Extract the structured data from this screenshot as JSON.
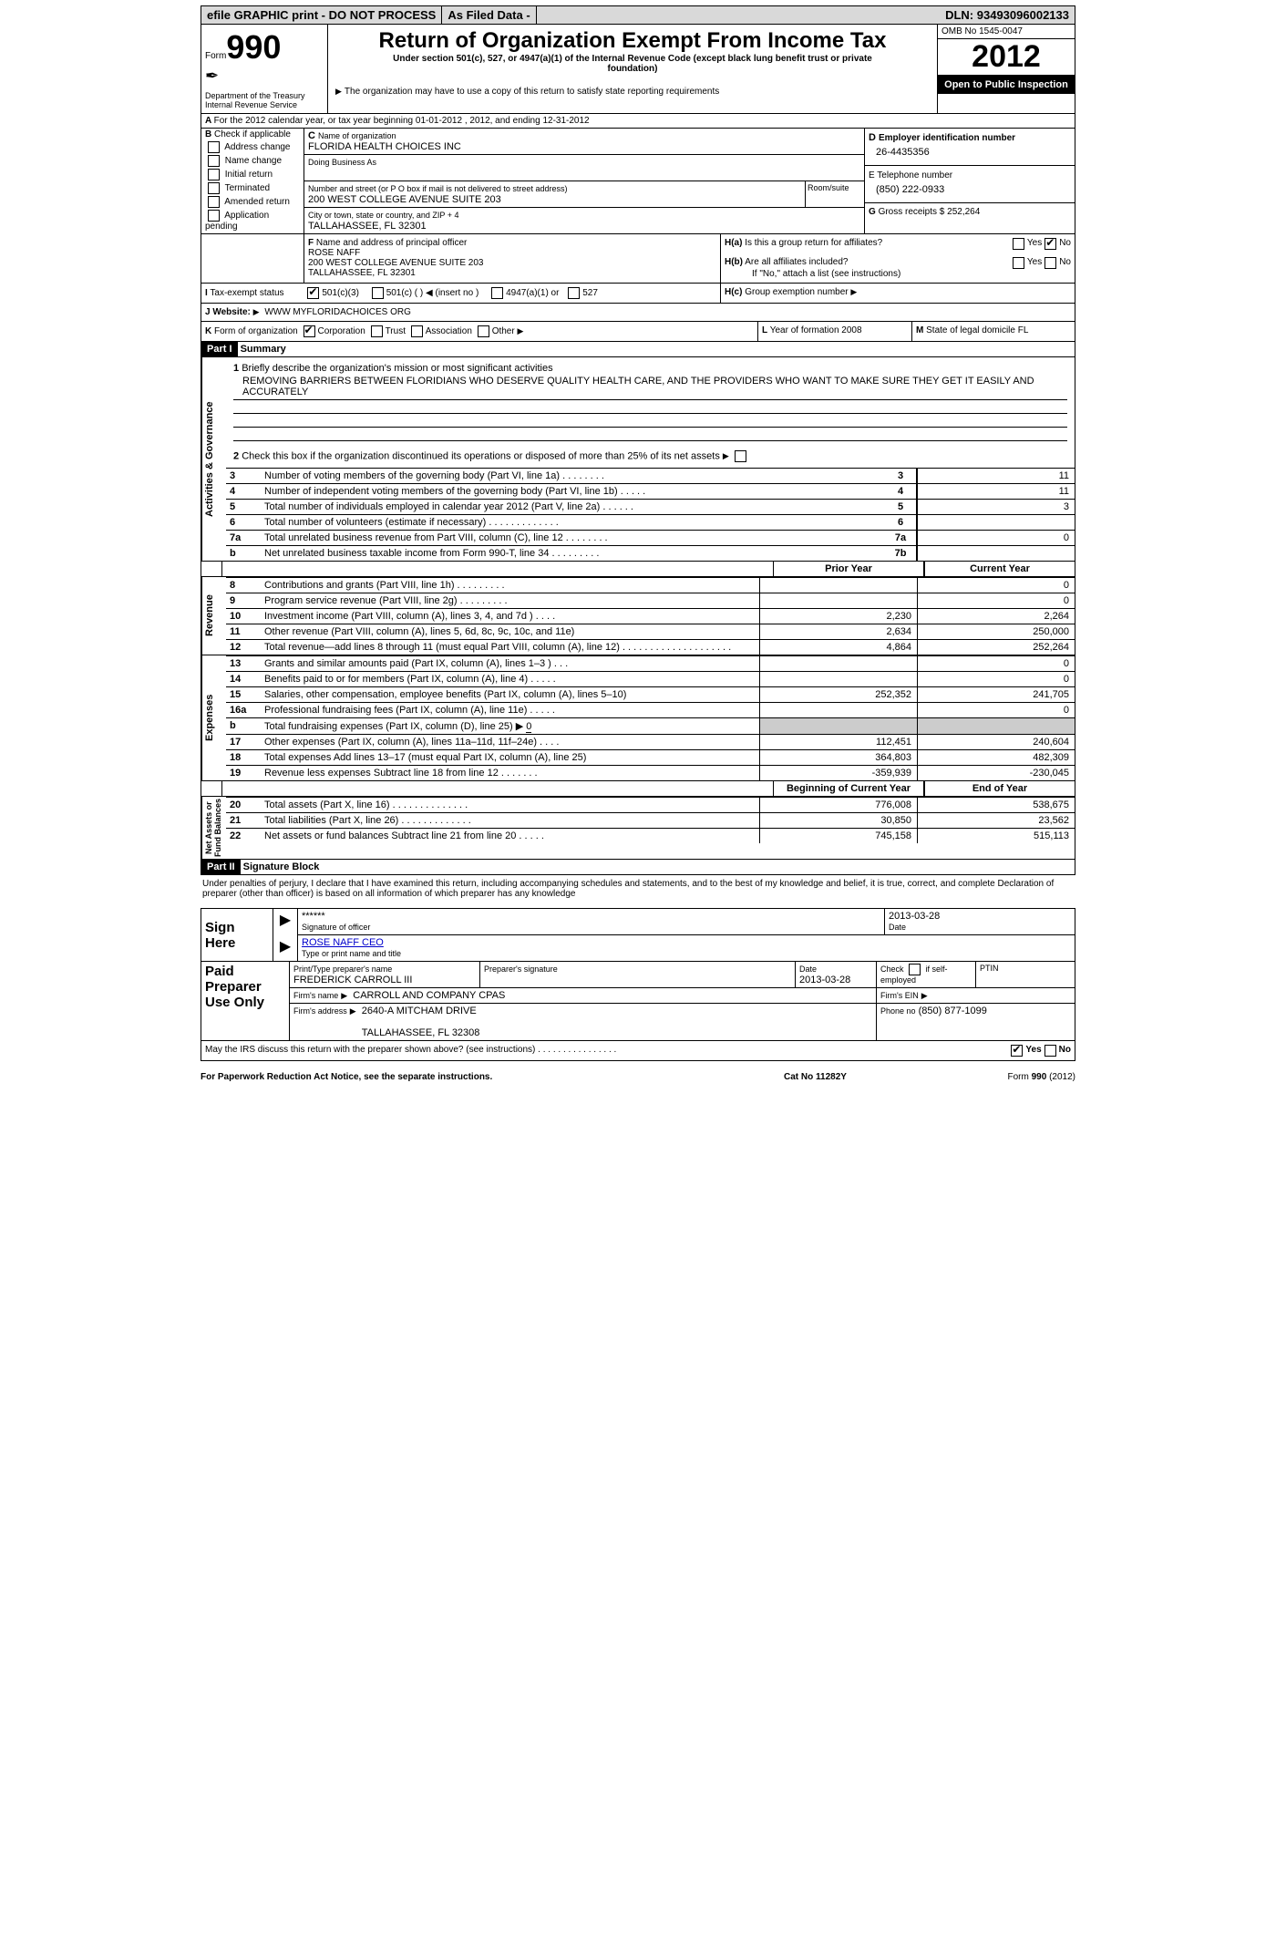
{
  "topbar": {
    "efile": "efile GRAPHIC print - DO NOT PROCESS",
    "asfiled": "As Filed Data -",
    "dln_label": "DLN:",
    "dln": "93493096002133"
  },
  "header": {
    "form_word": "Form",
    "form_no": "990",
    "dept": "Department of the Treasury\nInternal Revenue Service",
    "title": "Return of Organization Exempt From Income Tax",
    "sub1": "Under section 501(c), 527, or 4947(a)(1) of the Internal Revenue Code (except black lung benefit trust or private foundation)",
    "sub2": "The organization may have to use a copy of this return to satisfy state reporting requirements",
    "omb_label": "OMB No",
    "omb": "1545-0047",
    "year": "2012",
    "open": "Open to Public Inspection",
    "period": "For the 2012 calendar year, or tax year beginning 01-01-2012    , 2012, and ending 12-31-2012"
  },
  "B": {
    "label": "Check if applicable",
    "items": [
      "Address change",
      "Name change",
      "Initial return",
      "Terminated",
      "Amended return",
      "Application pending"
    ]
  },
  "C": {
    "name_lbl": "Name of organization",
    "name": "FLORIDA HEALTH CHOICES INC",
    "dba_lbl": "Doing Business As",
    "dba": "",
    "addr_lbl": "Number and street (or P O  box if mail is not delivered to street address)",
    "room_lbl": "Room/suite",
    "addr": "200 WEST COLLEGE AVENUE SUITE 203",
    "city_lbl": "City or town, state or country, and ZIP + 4",
    "city": "TALLAHASSEE, FL  32301"
  },
  "D": {
    "lbl": "Employer identification number",
    "val": "26-4435356"
  },
  "E": {
    "lbl": "Telephone number",
    "val": "(850) 222-0933"
  },
  "G": {
    "lbl": "Gross receipts $",
    "val": "252,264"
  },
  "F": {
    "lbl": "Name and address of principal officer",
    "name": "ROSE NAFF",
    "addr": "200 WEST COLLEGE AVENUE SUITE 203\nTALLAHASSEE, FL  32301"
  },
  "H": {
    "a": "Is this a group return for affiliates?",
    "b": "Are all affiliates included?",
    "b_note": "If \"No,\" attach a list  (see instructions)",
    "c_lbl": "Group exemption number",
    "yes": "Yes",
    "no": "No"
  },
  "I": {
    "lbl": "Tax-exempt status",
    "opts": [
      "501(c)(3)",
      "501(c) (  )",
      "(insert no )",
      "4947(a)(1) or",
      "527"
    ]
  },
  "J": {
    "lbl": "Website:",
    "val": "WWW MYFLORIDACHOICES ORG"
  },
  "K": {
    "lbl": "Form of organization",
    "opts": [
      "Corporation",
      "Trust",
      "Association",
      "Other"
    ]
  },
  "L": {
    "lbl": "Year of formation",
    "val": "2008"
  },
  "M": {
    "lbl": "State of legal domicile",
    "val": "FL"
  },
  "part1": {
    "label": "Part I",
    "title": "Summary"
  },
  "summary": {
    "q1": "Briefly describe the organization's mission or most significant activities",
    "mission": "REMOVING BARRIERS BETWEEN FLORIDIANS WHO DESERVE QUALITY HEALTH CARE, AND THE PROVIDERS WHO WANT TO MAKE SURE THEY GET IT  EASILY AND ACCURATELY",
    "q2": "Check this box      if the organization discontinued its operations or disposed of more than 25% of its net assets",
    "rows_top": [
      {
        "n": "3",
        "t": "Number of voting members of the governing body (Part VI, line 1a)   .    .    .    .    .    .    .    .",
        "k": "3",
        "v": "11"
      },
      {
        "n": "4",
        "t": "Number of independent voting members of the governing body (Part VI, line 1b)   .    .    .    .    .",
        "k": "4",
        "v": "11"
      },
      {
        "n": "5",
        "t": "Total number of individuals employed in calendar year 2012 (Part V, line 2a)   .    .    .    .    .    .",
        "k": "5",
        "v": "3"
      },
      {
        "n": "6",
        "t": "Total number of volunteers (estimate if necessary)   .    .    .    .    .    .    .    .    .    .    .    .    .",
        "k": "6",
        "v": ""
      },
      {
        "n": "7a",
        "t": "Total unrelated business revenue from Part VIII, column (C), line 12   .    .    .    .    .    .    .    .",
        "k": "7a",
        "v": "0"
      },
      {
        "n": "b",
        "t": "Net unrelated business taxable income from Form 990-T, line 34   .    .    .    .    .    .    .    .    .",
        "k": "7b",
        "v": ""
      }
    ],
    "prior": "Prior Year",
    "current": "Current Year",
    "revenue": [
      {
        "n": "8",
        "t": "Contributions and grants (Part VIII, line 1h)   .    .    .    .    .    .    .    .    .",
        "p": "",
        "c": "0"
      },
      {
        "n": "9",
        "t": "Program service revenue (Part VIII, line 2g)   .    .    .    .    .    .    .    .    .",
        "p": "",
        "c": "0"
      },
      {
        "n": "10",
        "t": "Investment income (Part VIII, column (A), lines 3, 4, and 7d )   .    .    .    .",
        "p": "2,230",
        "c": "2,264"
      },
      {
        "n": "11",
        "t": "Other revenue (Part VIII, column (A), lines 5, 6d, 8c, 9c, 10c, and 11e)",
        "p": "2,634",
        "c": "250,000"
      },
      {
        "n": "12",
        "t": "Total revenue—add lines 8 through 11 (must equal Part VIII, column (A), line 12)  .    .    .    .    .    .    .    .    .    .    .    .    .    .    .    .    .    .    .    .",
        "p": "4,864",
        "c": "252,264"
      }
    ],
    "expenses": [
      {
        "n": "13",
        "t": "Grants and similar amounts paid (Part IX, column (A), lines 1–3 )   .    .    .",
        "p": "",
        "c": "0"
      },
      {
        "n": "14",
        "t": "Benefits paid to or for members (Part IX, column (A), line 4)   .    .    .    .    .",
        "p": "",
        "c": "0"
      },
      {
        "n": "15",
        "t": "Salaries, other compensation, employee benefits (Part IX, column (A), lines 5–10)",
        "p": "252,352",
        "c": "241,705"
      },
      {
        "n": "16a",
        "t": "Professional fundraising fees (Part IX, column (A), line 11e)   .    .    .    .    .",
        "p": "",
        "c": "0"
      },
      {
        "n": "b",
        "t": "Total fundraising expenses (Part IX, column (D), line 25)  ▶",
        "p": "__hide__",
        "c": "__hide__",
        "extra": "0"
      },
      {
        "n": "17",
        "t": "Other expenses (Part IX, column (A), lines 11a–11d, 11f–24e)   .    .    .    .",
        "p": "112,451",
        "c": "240,604"
      },
      {
        "n": "18",
        "t": "Total expenses  Add lines 13–17 (must equal Part IX, column (A), line 25)",
        "p": "364,803",
        "c": "482,309"
      },
      {
        "n": "19",
        "t": "Revenue less expenses  Subtract line 18 from line 12   .    .    .    .    .    .    .",
        "p": "-359,939",
        "c": "-230,045"
      }
    ],
    "boy": "Beginning of Current Year",
    "eoy": "End of Year",
    "balances": [
      {
        "n": "20",
        "t": "Total assets (Part X, line 16)   .    .    .    .    .    .    .    .    .    .    .    .    .    .",
        "p": "776,008",
        "c": "538,675"
      },
      {
        "n": "21",
        "t": "Total liabilities (Part X, line 26)   .    .    .    .    .    .    .    .    .    .    .    .    .",
        "p": "30,850",
        "c": "23,562"
      },
      {
        "n": "22",
        "t": "Net assets or fund balances  Subtract line 21 from line 20   .    .    .    .    .",
        "p": "745,158",
        "c": "515,113"
      }
    ],
    "side_labels": {
      "ag": "Activities & Governance",
      "rev": "Revenue",
      "exp": "Expenses",
      "nab": "Net Assets or\nFund Balances"
    }
  },
  "part2": {
    "label": "Part II",
    "title": "Signature Block",
    "perjury": "Under penalties of perjury, I declare that I have examined this return, including accompanying schedules and statements, and to the best of my knowledge and belief, it is true, correct, and complete  Declaration of preparer (other than officer) is based on all information of which preparer has any knowledge"
  },
  "sign": {
    "here": "Sign Here",
    "stars": "******",
    "sig_lbl": "Signature of officer",
    "date": "2013-03-28",
    "date_lbl": "Date",
    "name": "ROSE NAFF CEO",
    "name_lbl": "Type or print name and title"
  },
  "paid": {
    "label": "Paid Preparer Use Only",
    "prep_lbl": "Print/Type preparer's name",
    "prep": "FREDERICK CARROLL III",
    "sig_lbl": "Preparer's signature",
    "date_lbl": "Date",
    "date": "2013-03-28",
    "check_lbl": "Check",
    "self": "if self-employed",
    "ptin": "PTIN",
    "firm_lbl": "Firm's name",
    "firm": "CARROLL AND COMPANY CPAS",
    "ein_lbl": "Firm's EIN",
    "addr_lbl": "Firm's address",
    "addr": "2640-A MITCHAM DRIVE\n\nTALLAHASSEE, FL  32308",
    "phone_lbl": "Phone no",
    "phone": "(850) 877-1099",
    "discuss": "May the IRS discuss this return with the preparer shown above? (see instructions)   .    .    .    .    .    .    .    .    .    .    .    .    .    .    .    .",
    "yes": "Yes",
    "no": "No"
  },
  "footer": {
    "pra": "For Paperwork Reduction Act Notice, see the separate instructions.",
    "cat": "Cat  No  11282Y",
    "form": "Form 990 (2012)"
  }
}
